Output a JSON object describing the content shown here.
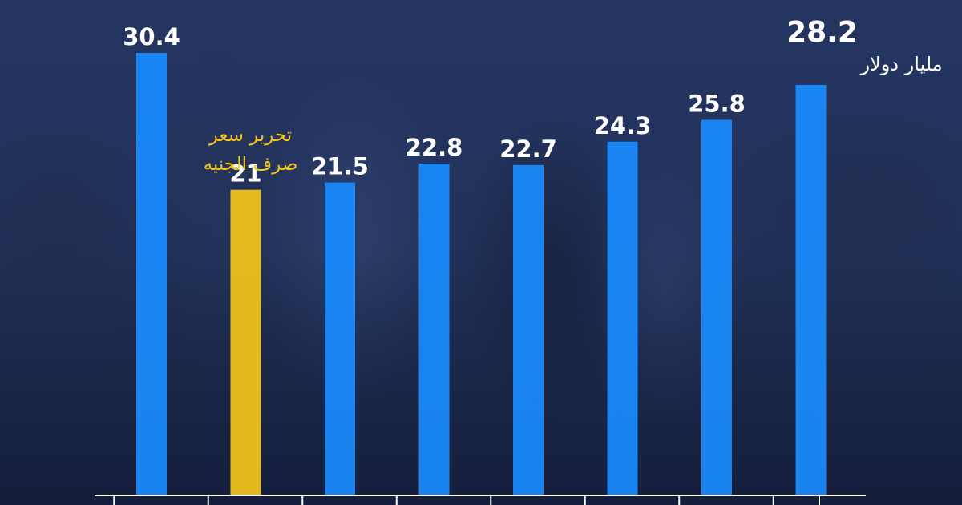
{
  "colors": {
    "bar": "#1a8cff",
    "highlight": "#f5c518",
    "label": "#ffffff",
    "axis": "#ffffff"
  },
  "chart_data": {
    "type": "bar",
    "title": "",
    "xlabel": "",
    "ylabel": "",
    "unit": "مليار دولار",
    "ylim": [
      0,
      32
    ],
    "categories": [
      "",
      "",
      "",
      "",
      "",
      "",
      "",
      ""
    ],
    "values": [
      30.4,
      21,
      21.5,
      22.8,
      22.7,
      24.3,
      25.8,
      28.2
    ],
    "value_labels": [
      "30.4",
      "21",
      "21.5",
      "22.8",
      "22.7",
      "24.3",
      "25.8",
      "28.2"
    ],
    "highlight_index": 1,
    "annotation": {
      "bar_index": 1,
      "lines": [
        "تحرير سعر",
        "صرف الجنيه"
      ]
    },
    "grid": false,
    "legend": "none"
  }
}
